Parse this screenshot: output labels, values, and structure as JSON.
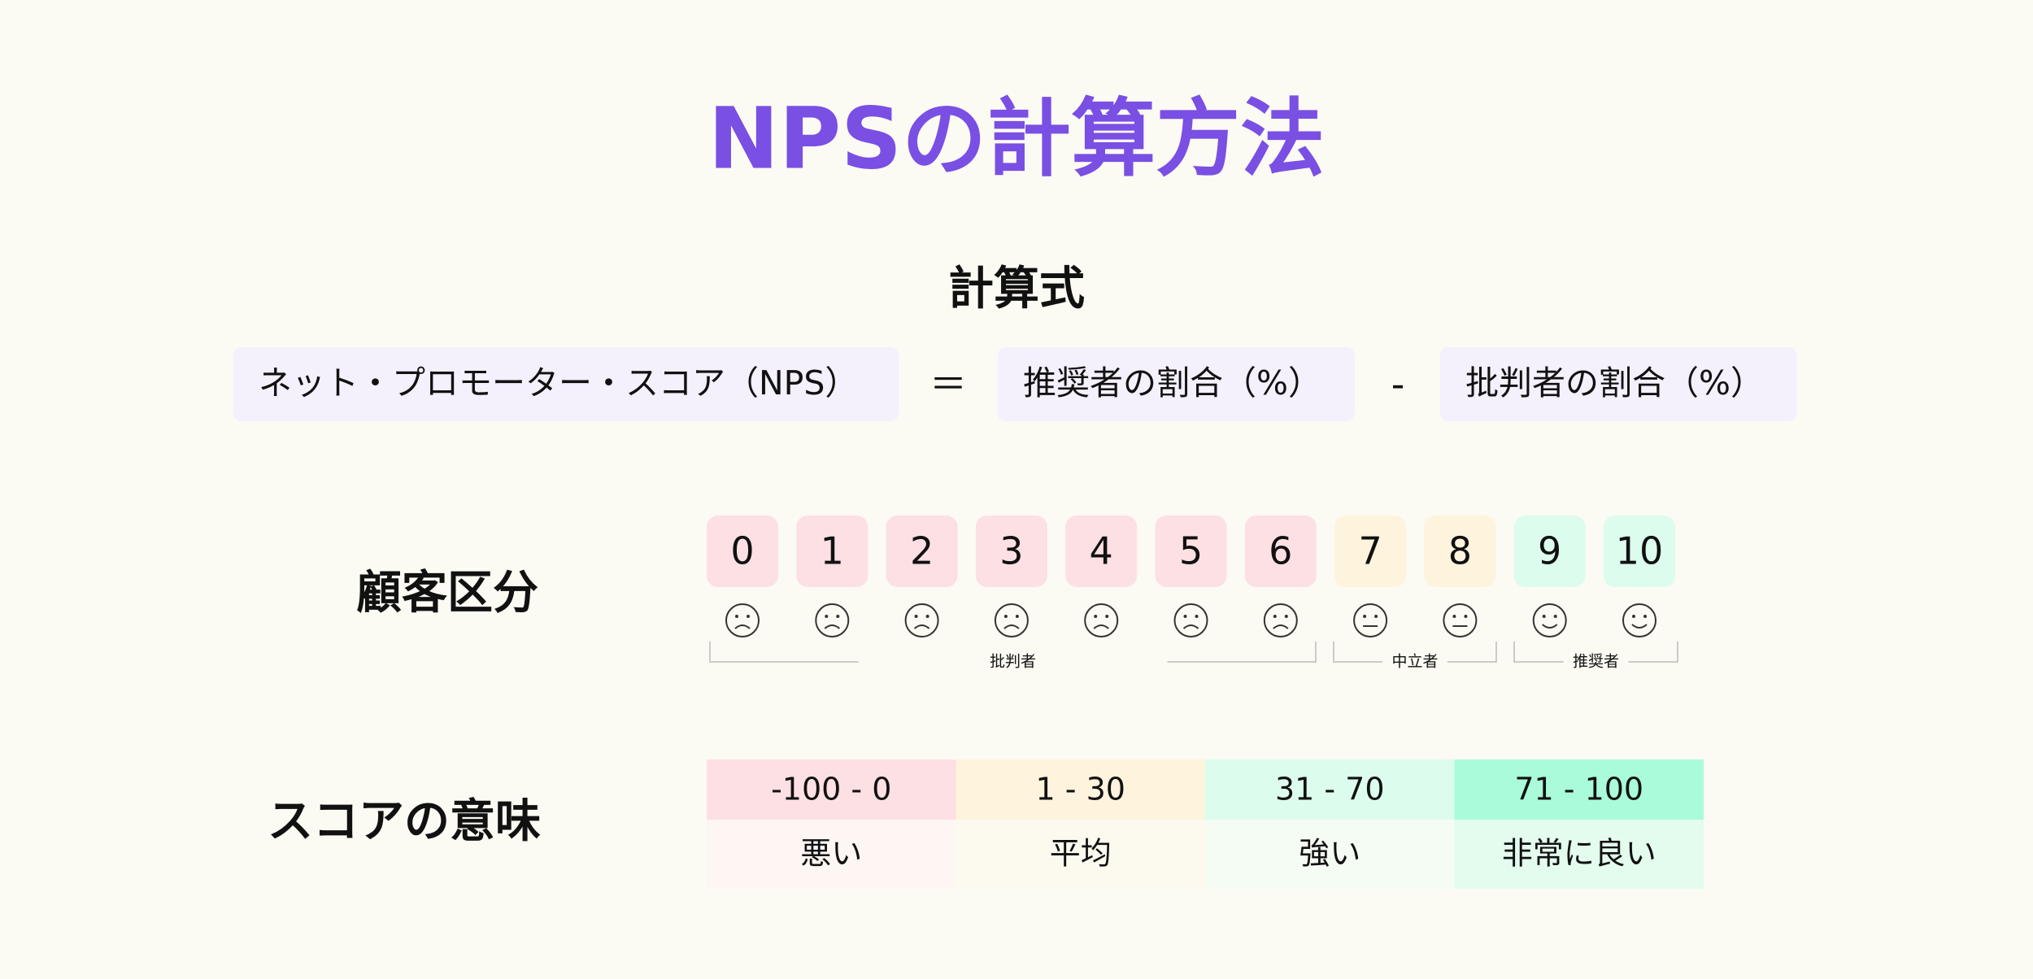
{
  "title": "NPSの計算方法",
  "formula": {
    "heading": "計算式",
    "result": "ネット・プロモーター・スコア（NPS）",
    "equals": "＝",
    "minuend": "推奨者の割合（%）",
    "minus": "-",
    "subtrahend": "批判者の割合（%）"
  },
  "segments": {
    "heading": "顧客区分",
    "groups": [
      {
        "label": "批判者",
        "color": "#fde0e3",
        "scores": [
          "0",
          "1",
          "2",
          "3",
          "4",
          "5",
          "6"
        ]
      },
      {
        "label": "中立者",
        "color": "#fef3dc",
        "scores": [
          "7",
          "8"
        ]
      },
      {
        "label": "推奨者",
        "color": "#dcfcee",
        "scores": [
          "9",
          "10"
        ]
      }
    ]
  },
  "meaning": {
    "heading": "スコアの意味",
    "columns": [
      {
        "range": "-100 - 0",
        "label": "悪い",
        "color": "#fde0e3",
        "light": "#fdf6f3"
      },
      {
        "range": "1 - 30",
        "label": "平均",
        "color": "#fef3dc",
        "light": "#fcf9ef"
      },
      {
        "range": "31 - 70",
        "label": "強い",
        "color": "#dcfcee",
        "light": "#f5fcf3"
      },
      {
        "range": "71 - 100",
        "label": "非常に良い",
        "color": "#a9fbd9",
        "light": "#e3fcee"
      }
    ]
  }
}
